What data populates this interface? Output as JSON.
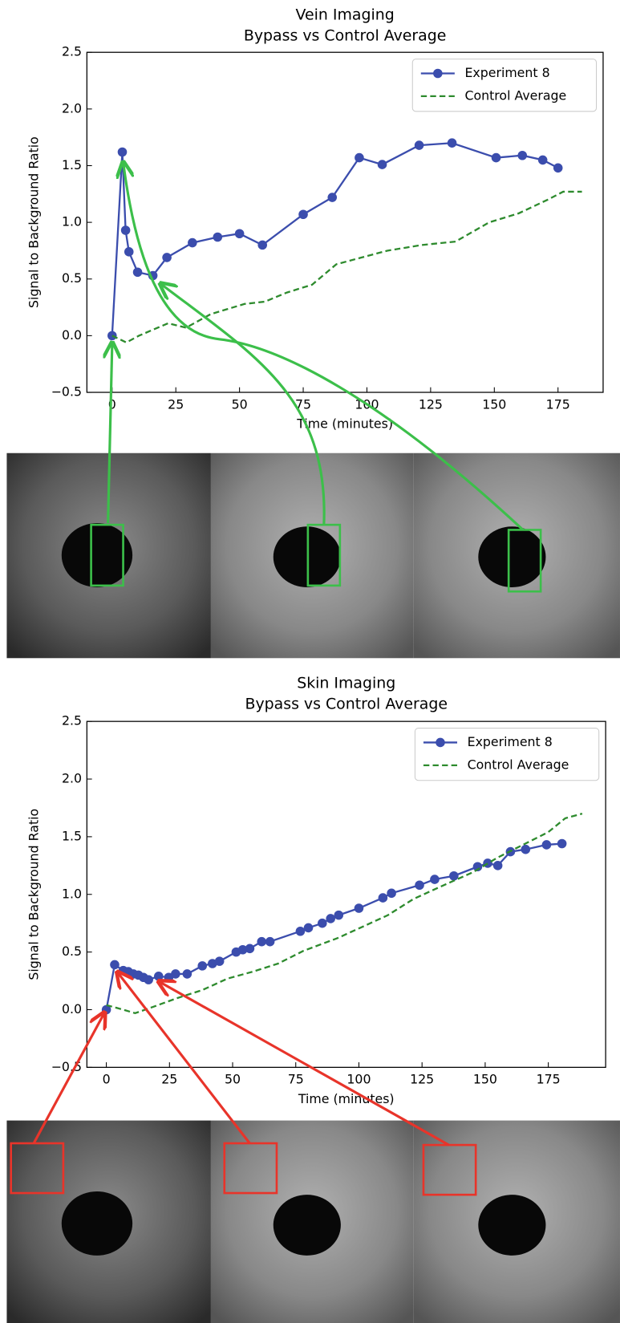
{
  "chart_data": [
    {
      "type": "line",
      "title": "Vein Imaging",
      "subtitle": "Bypass vs Control Average",
      "x_label": "Time (minutes)",
      "y_label": "Signal to Background Ratio",
      "xlim": [
        -9.9,
        192.7
      ],
      "ylim": [
        -0.5,
        2.5
      ],
      "xticks": [
        0,
        25,
        50,
        75,
        100,
        125,
        150,
        175
      ],
      "yticks": [
        {
          "value": -0.5,
          "label": "−0.5"
        },
        {
          "value": 0.0,
          "label": "0.0"
        },
        0.5,
        {
          "value": 1.0,
          "label": "1.0"
        },
        1.5,
        {
          "value": 2.0,
          "label": "2.0"
        },
        2.5
      ],
      "legend": "upper right",
      "series": [
        {
          "name": "Experiment 8",
          "color": "#3b4dad",
          "marker": "o",
          "linestyle": "solid",
          "x": [
            0,
            4,
            5.3,
            6.6,
            10,
            16,
            21.5,
            31.5,
            41.4,
            50,
            59,
            75,
            86.4,
            97,
            106,
            120.5,
            133.4,
            150.7,
            161,
            169,
            175
          ],
          "values": [
            0,
            1.62,
            0.93,
            0.74,
            0.56,
            0.53,
            0.69,
            0.82,
            0.87,
            0.9,
            0.8,
            1.07,
            1.22,
            1.57,
            1.51,
            1.68,
            1.7,
            1.57,
            1.59,
            1.55,
            1.48
          ]
        },
        {
          "name": "Control Average",
          "color": "#2e8b2e",
          "linestyle": "dashed",
          "x": [
            0,
            5.6,
            10.6,
            22,
            29,
            38.7,
            52,
            60,
            68.5,
            78.5,
            88,
            98,
            108,
            121.5,
            134.8,
            148,
            159.6,
            171,
            177,
            184.4
          ],
          "values": [
            0,
            -0.06,
            0,
            0.11,
            0.07,
            0.19,
            0.28,
            0.3,
            0.38,
            0.45,
            0.63,
            0.69,
            0.75,
            0.8,
            0.83,
            1.0,
            1.08,
            1.2,
            1.27,
            1.27
          ]
        }
      ]
    },
    {
      "type": "line",
      "title": "Skin Imaging",
      "subtitle": "Bypass vs Control Average",
      "x_label": "Time (minutes)",
      "y_label": "Signal to Background Ratio",
      "xlim": [
        -7.7,
        197.7
      ],
      "ylim": [
        -0.5,
        2.5
      ],
      "xticks": [
        0,
        25,
        50,
        75,
        100,
        125,
        150,
        175
      ],
      "yticks": [
        {
          "value": -0.5,
          "label": "−0.5"
        },
        {
          "value": 0.0,
          "label": "0.0"
        },
        0.5,
        {
          "value": 1.0,
          "label": "1.0"
        },
        1.5,
        {
          "value": 2.0,
          "label": "2.0"
        },
        2.5
      ],
      "legend": "upper right",
      "series": [
        {
          "name": "Experiment 8",
          "color": "#3b4dad",
          "marker": "o",
          "linestyle": "solid",
          "x": [
            0,
            3.3,
            6.7,
            8.7,
            10.7,
            12.7,
            14.7,
            16.7,
            20.7,
            24.7,
            27.4,
            32,
            38,
            42,
            44.8,
            51.4,
            54,
            56.8,
            61.5,
            64.8,
            76.8,
            80,
            85.5,
            88.8,
            92,
            100,
            109.5,
            112.9,
            124,
            130,
            137.6,
            147,
            151,
            155,
            160,
            166,
            174.3,
            180.4
          ],
          "values": [
            0,
            0.39,
            0.34,
            0.33,
            0.31,
            0.3,
            0.28,
            0.26,
            0.29,
            0.28,
            0.31,
            0.31,
            0.38,
            0.4,
            0.42,
            0.5,
            0.52,
            0.53,
            0.59,
            0.59,
            0.68,
            0.71,
            0.75,
            0.79,
            0.82,
            0.88,
            0.97,
            1.01,
            1.08,
            1.13,
            1.16,
            1.24,
            1.27,
            1.25,
            1.37,
            1.39,
            1.43,
            1.44
          ]
        },
        {
          "name": "Control Average",
          "color": "#2e8b2e",
          "linestyle": "dashed",
          "x": [
            0,
            6.7,
            11.4,
            18,
            28,
            38,
            48,
            58,
            68,
            78,
            91.5,
            101.5,
            111.5,
            121.6,
            131.6,
            145,
            155,
            165,
            175,
            181.7,
            188.4
          ],
          "values": [
            0.04,
            0,
            -0.03,
            0.02,
            0.1,
            0.17,
            0.27,
            0.33,
            0.4,
            0.51,
            0.62,
            0.72,
            0.82,
            0.96,
            1.06,
            1.19,
            1.32,
            1.43,
            1.54,
            1.66,
            1.7
          ]
        }
      ]
    }
  ]
}
